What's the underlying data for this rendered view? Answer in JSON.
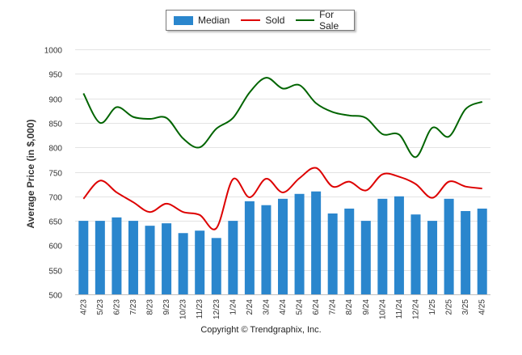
{
  "chart_data": {
    "type": "bar+line",
    "ylabel": "Average Price (in $,000)",
    "ylim": [
      500,
      1000
    ],
    "yticks": [
      500,
      550,
      600,
      650,
      700,
      750,
      800,
      850,
      900,
      950,
      1000
    ],
    "grid": true,
    "legend_position": "top-center",
    "categories": [
      "4/23",
      "5/23",
      "6/23",
      "7/23",
      "8/23",
      "9/23",
      "10/23",
      "11/23",
      "12/23",
      "1/24",
      "2/24",
      "3/24",
      "4/24",
      "5/24",
      "6/24",
      "7/24",
      "8/24",
      "9/24",
      "10/24",
      "11/24",
      "12/24",
      "1/25",
      "2/25",
      "3/25",
      "4/25"
    ],
    "series": [
      {
        "name": "Median",
        "type": "bar",
        "color": "#2a86cd",
        "values": [
          650,
          650,
          657,
          650,
          640,
          645,
          625,
          630,
          615,
          650,
          690,
          682,
          695,
          705,
          710,
          665,
          675,
          650,
          695,
          700,
          663,
          650,
          695,
          670,
          675
        ]
      },
      {
        "name": "Sold",
        "type": "line",
        "color": "#dd0000",
        "values": [
          695,
          732,
          708,
          688,
          668,
          685,
          668,
          662,
          635,
          735,
          698,
          736,
          708,
          737,
          758,
          720,
          730,
          712,
          745,
          740,
          725,
          697,
          730,
          720,
          716
        ]
      },
      {
        "name": "For Sale",
        "type": "line",
        "color": "#006400",
        "values": [
          910,
          850,
          882,
          862,
          858,
          860,
          818,
          800,
          838,
          860,
          912,
          942,
          920,
          927,
          890,
          872,
          865,
          860,
          827,
          826,
          780,
          840,
          822,
          878,
          893
        ]
      }
    ]
  },
  "copyright": "Copyright © Trendgraphix, Inc."
}
